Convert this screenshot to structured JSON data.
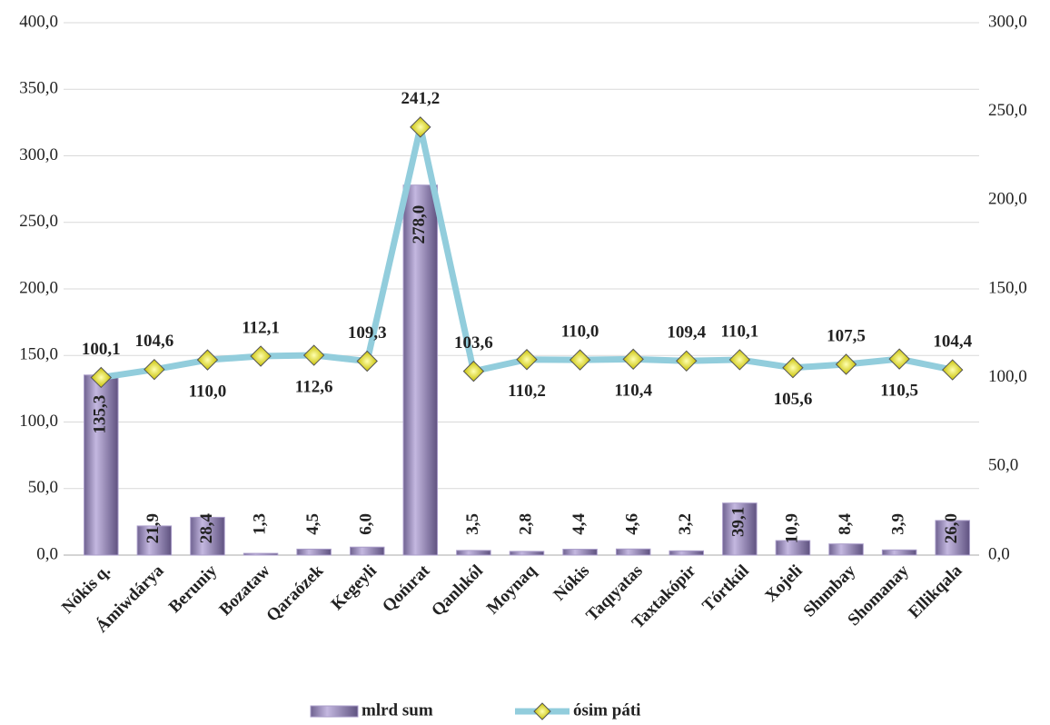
{
  "chart_data": {
    "type": "bar-line",
    "categories": [
      "Nókis q.",
      "Ámiwdárya",
      "Beruniy",
      "Bozataw",
      "Qaraózek",
      "Kegeyli",
      "Qońırat",
      "Qanlıkól",
      "Moynaq",
      "Nókis",
      "Taqıyatas",
      "Taxtakópir",
      "Tórtkúl",
      "Xojeli",
      "Shımbay",
      "Shomanay",
      "Ellikqala"
    ],
    "series": [
      {
        "name": "mlrd sum",
        "type": "bar",
        "color": "#a99cc9",
        "axis": "y",
        "values": [
          135.3,
          21.9,
          28.4,
          1.3,
          4.5,
          6.0,
          278.0,
          3.5,
          2.8,
          4.4,
          4.6,
          3.2,
          39.1,
          10.9,
          8.4,
          3.9,
          26.0
        ],
        "value_labels": [
          "135,3",
          "21,9",
          "28,4",
          "1,3",
          "4,5",
          "6,0",
          "278,0",
          "3,5",
          "2,8",
          "4,4",
          "4,6",
          "3,2",
          "39,1",
          "10,9",
          "8,4",
          "3,9",
          "26,0"
        ]
      },
      {
        "name": "ósim páti",
        "type": "line",
        "color": "#92cddc",
        "axis": "y2",
        "values": [
          100.1,
          104.6,
          110.0,
          112.1,
          112.6,
          109.3,
          241.2,
          103.6,
          110.2,
          110.0,
          110.4,
          109.4,
          110.1,
          105.6,
          107.5,
          110.5,
          104.4
        ],
        "value_labels": [
          "100,1",
          "104,6",
          "110,0",
          "112,1",
          "112,6",
          "109,3",
          "241,2",
          "103,6",
          "110,2",
          "110,0",
          "110,4",
          "109,4",
          "110,1",
          "105,6",
          "107,5",
          "110,5",
          "104,4"
        ]
      }
    ],
    "ylim": [
      0,
      400
    ],
    "yticks": [
      {
        "value": 0,
        "label": "0,0"
      },
      {
        "value": 50,
        "label": "50,0"
      },
      {
        "value": 100,
        "label": "100,0"
      },
      {
        "value": 150,
        "label": "150,0"
      },
      {
        "value": 200,
        "label": "200,0"
      },
      {
        "value": 250,
        "label": "250,0"
      },
      {
        "value": 300,
        "label": "300,0"
      },
      {
        "value": 350,
        "label": "350,0"
      },
      {
        "value": 400,
        "label": "400,0"
      }
    ],
    "y2lim": [
      0,
      300
    ],
    "y2ticks": [
      {
        "value": 0,
        "label": "0,0"
      },
      {
        "value": 50,
        "label": "50,0"
      },
      {
        "value": 100,
        "label": "100,0"
      },
      {
        "value": 150,
        "label": "150,0"
      },
      {
        "value": 200,
        "label": "200,0"
      },
      {
        "value": 250,
        "label": "250,0"
      },
      {
        "value": 300,
        "label": "300,0"
      }
    ],
    "grid": true,
    "legend": "bottom"
  }
}
